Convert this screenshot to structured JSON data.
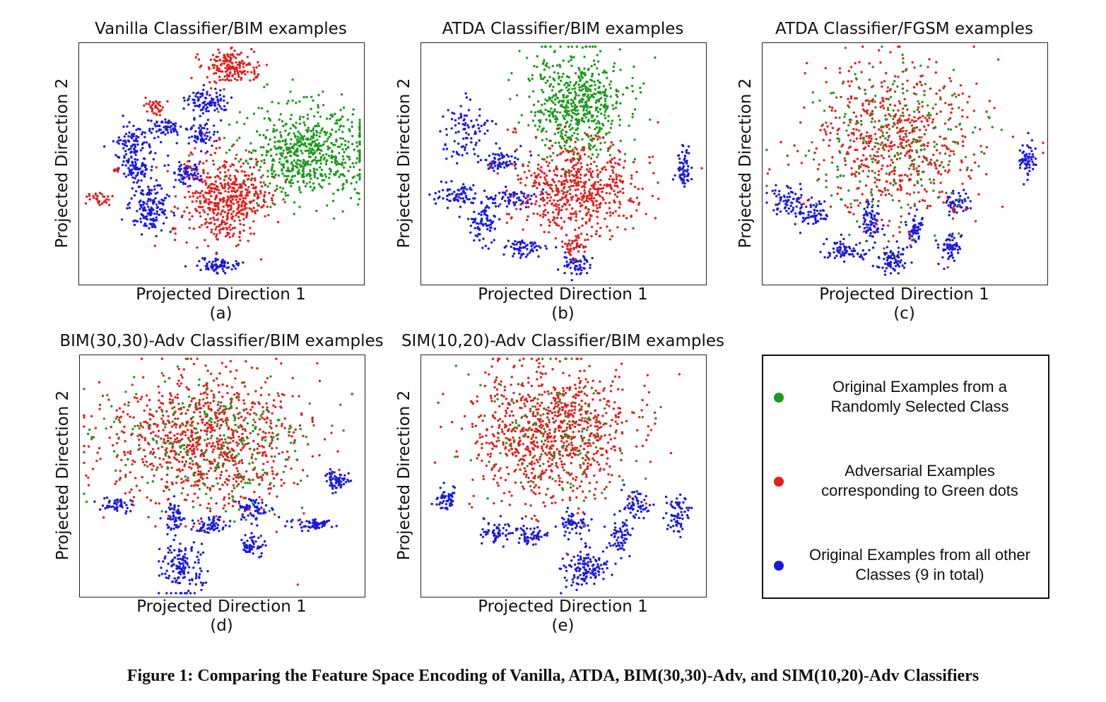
{
  "colors": {
    "green": "#1e9a1e",
    "red": "#e0201e",
    "blue": "#1a1adc"
  },
  "chart_data": [
    {
      "type": "scatter",
      "title": "Vanilla Classifier/BIM examples",
      "xlabel": "Projected Direction 1",
      "ylabel": "Projected Direction 2",
      "sublabel": "(a)",
      "grid": false,
      "clusters": [
        {
          "cls": "red",
          "x": 0.53,
          "y": 0.1,
          "sx": 0.045,
          "sy": 0.035,
          "n": 170
        },
        {
          "cls": "red",
          "x": 0.26,
          "y": 0.26,
          "sx": 0.018,
          "sy": 0.018,
          "n": 35
        },
        {
          "cls": "red",
          "x": 0.07,
          "y": 0.64,
          "sx": 0.018,
          "sy": 0.015,
          "n": 30
        },
        {
          "cls": "red",
          "x": 0.13,
          "y": 0.53,
          "sx": 0.006,
          "sy": 0.006,
          "n": 8
        },
        {
          "cls": "red",
          "x": 0.52,
          "y": 0.65,
          "sx": 0.075,
          "sy": 0.09,
          "n": 480
        },
        {
          "cls": "red",
          "x": 0.33,
          "y": 0.77,
          "sx": 0.004,
          "sy": 0.004,
          "n": 4
        },
        {
          "cls": "red",
          "x": 0.49,
          "y": 0.4,
          "sx": 0.004,
          "sy": 0.004,
          "n": 3
        },
        {
          "cls": "green",
          "x": 0.8,
          "y": 0.45,
          "sx": 0.11,
          "sy": 0.095,
          "n": 650
        },
        {
          "cls": "blue",
          "x": 0.45,
          "y": 0.24,
          "sx": 0.04,
          "sy": 0.025,
          "n": 90
        },
        {
          "cls": "blue",
          "x": 0.3,
          "y": 0.35,
          "sx": 0.03,
          "sy": 0.02,
          "n": 60
        },
        {
          "cls": "blue",
          "x": 0.43,
          "y": 0.38,
          "sx": 0.025,
          "sy": 0.03,
          "n": 70
        },
        {
          "cls": "blue",
          "x": 0.19,
          "y": 0.42,
          "sx": 0.035,
          "sy": 0.035,
          "n": 90
        },
        {
          "cls": "blue",
          "x": 0.2,
          "y": 0.52,
          "sx": 0.03,
          "sy": 0.025,
          "n": 70
        },
        {
          "cls": "blue",
          "x": 0.38,
          "y": 0.53,
          "sx": 0.03,
          "sy": 0.025,
          "n": 70
        },
        {
          "cls": "blue",
          "x": 0.25,
          "y": 0.68,
          "sx": 0.035,
          "sy": 0.05,
          "n": 160
        },
        {
          "cls": "blue",
          "x": 0.49,
          "y": 0.92,
          "sx": 0.04,
          "sy": 0.018,
          "n": 80
        }
      ]
    },
    {
      "type": "scatter",
      "title": "ATDA Classifier/BIM examples",
      "xlabel": "Projected Direction 1",
      "ylabel": "Projected Direction 2",
      "sublabel": "(b)",
      "grid": false,
      "clusters": [
        {
          "cls": "green",
          "x": 0.55,
          "y": 0.25,
          "sx": 0.085,
          "sy": 0.11,
          "n": 600
        },
        {
          "cls": "red",
          "x": 0.55,
          "y": 0.6,
          "sx": 0.11,
          "sy": 0.09,
          "n": 560
        },
        {
          "cls": "red",
          "x": 0.54,
          "y": 0.84,
          "sx": 0.02,
          "sy": 0.03,
          "n": 45
        },
        {
          "cls": "red",
          "x": 0.33,
          "y": 0.36,
          "sx": 0.005,
          "sy": 0.005,
          "n": 4
        },
        {
          "cls": "blue",
          "x": 0.15,
          "y": 0.36,
          "sx": 0.04,
          "sy": 0.06,
          "n": 90
        },
        {
          "cls": "blue",
          "x": 0.27,
          "y": 0.49,
          "sx": 0.035,
          "sy": 0.025,
          "n": 70
        },
        {
          "cls": "blue",
          "x": 0.12,
          "y": 0.63,
          "sx": 0.04,
          "sy": 0.025,
          "n": 70
        },
        {
          "cls": "blue",
          "x": 0.32,
          "y": 0.64,
          "sx": 0.045,
          "sy": 0.02,
          "n": 70
        },
        {
          "cls": "blue",
          "x": 0.22,
          "y": 0.75,
          "sx": 0.025,
          "sy": 0.045,
          "n": 80
        },
        {
          "cls": "blue",
          "x": 0.37,
          "y": 0.85,
          "sx": 0.04,
          "sy": 0.018,
          "n": 60
        },
        {
          "cls": "blue",
          "x": 0.54,
          "y": 0.92,
          "sx": 0.025,
          "sy": 0.025,
          "n": 60
        },
        {
          "cls": "blue",
          "x": 0.92,
          "y": 0.52,
          "sx": 0.012,
          "sy": 0.05,
          "n": 60
        }
      ]
    },
    {
      "type": "scatter",
      "title": "ATDA Classifier/FGSM examples",
      "xlabel": "Projected Direction 1",
      "ylabel": "Projected Direction 2",
      "sublabel": "(c)",
      "grid": false,
      "clusters": [
        {
          "cls": "red",
          "x": 0.47,
          "y": 0.4,
          "sx": 0.15,
          "sy": 0.16,
          "n": 600
        },
        {
          "cls": "green",
          "x": 0.47,
          "y": 0.4,
          "sx": 0.15,
          "sy": 0.16,
          "n": 220
        },
        {
          "cls": "blue",
          "x": 0.93,
          "y": 0.49,
          "sx": 0.015,
          "sy": 0.04,
          "n": 60
        },
        {
          "cls": "blue",
          "x": 0.09,
          "y": 0.65,
          "sx": 0.035,
          "sy": 0.035,
          "n": 70
        },
        {
          "cls": "blue",
          "x": 0.17,
          "y": 0.71,
          "sx": 0.03,
          "sy": 0.025,
          "n": 60
        },
        {
          "cls": "blue",
          "x": 0.38,
          "y": 0.74,
          "sx": 0.02,
          "sy": 0.04,
          "n": 70
        },
        {
          "cls": "blue",
          "x": 0.53,
          "y": 0.76,
          "sx": 0.015,
          "sy": 0.03,
          "n": 55
        },
        {
          "cls": "blue",
          "x": 0.68,
          "y": 0.66,
          "sx": 0.025,
          "sy": 0.02,
          "n": 50
        },
        {
          "cls": "blue",
          "x": 0.29,
          "y": 0.86,
          "sx": 0.04,
          "sy": 0.02,
          "n": 70
        },
        {
          "cls": "blue",
          "x": 0.46,
          "y": 0.9,
          "sx": 0.03,
          "sy": 0.03,
          "n": 75
        },
        {
          "cls": "blue",
          "x": 0.66,
          "y": 0.85,
          "sx": 0.02,
          "sy": 0.03,
          "n": 60
        }
      ]
    },
    {
      "type": "scatter",
      "title": "BIM(30,30)-Adv Classifier/BIM examples",
      "xlabel": "Projected Direction 1",
      "ylabel": "Projected Direction 2",
      "sublabel": "(d)",
      "grid": false,
      "clusters": [
        {
          "cls": "red",
          "x": 0.44,
          "y": 0.35,
          "sx": 0.17,
          "sy": 0.14,
          "n": 900
        },
        {
          "cls": "green",
          "x": 0.44,
          "y": 0.35,
          "sx": 0.17,
          "sy": 0.14,
          "n": 260
        },
        {
          "cls": "blue",
          "x": 0.9,
          "y": 0.52,
          "sx": 0.025,
          "sy": 0.02,
          "n": 60
        },
        {
          "cls": "blue",
          "x": 0.13,
          "y": 0.62,
          "sx": 0.025,
          "sy": 0.015,
          "n": 45
        },
        {
          "cls": "blue",
          "x": 0.33,
          "y": 0.67,
          "sx": 0.02,
          "sy": 0.03,
          "n": 55
        },
        {
          "cls": "blue",
          "x": 0.46,
          "y": 0.71,
          "sx": 0.025,
          "sy": 0.02,
          "n": 55
        },
        {
          "cls": "blue",
          "x": 0.6,
          "y": 0.64,
          "sx": 0.03,
          "sy": 0.025,
          "n": 60
        },
        {
          "cls": "blue",
          "x": 0.81,
          "y": 0.7,
          "sx": 0.045,
          "sy": 0.012,
          "n": 60
        },
        {
          "cls": "blue",
          "x": 0.61,
          "y": 0.78,
          "sx": 0.02,
          "sy": 0.03,
          "n": 55
        },
        {
          "cls": "blue",
          "x": 0.36,
          "y": 0.88,
          "sx": 0.035,
          "sy": 0.055,
          "n": 140
        }
      ]
    },
    {
      "type": "scatter",
      "title": "SIM(10,20)-Adv Classifier/BIM examples",
      "xlabel": "Projected Direction 1",
      "ylabel": "Projected Direction 2",
      "sublabel": "(e)",
      "grid": false,
      "clusters": [
        {
          "cls": "red",
          "x": 0.46,
          "y": 0.32,
          "sx": 0.14,
          "sy": 0.14,
          "n": 880
        },
        {
          "cls": "green",
          "x": 0.46,
          "y": 0.32,
          "sx": 0.14,
          "sy": 0.14,
          "n": 120
        },
        {
          "cls": "blue",
          "x": 0.09,
          "y": 0.6,
          "sx": 0.02,
          "sy": 0.03,
          "n": 50
        },
        {
          "cls": "blue",
          "x": 0.27,
          "y": 0.73,
          "sx": 0.03,
          "sy": 0.025,
          "n": 60
        },
        {
          "cls": "blue",
          "x": 0.39,
          "y": 0.75,
          "sx": 0.03,
          "sy": 0.02,
          "n": 55
        },
        {
          "cls": "blue",
          "x": 0.53,
          "y": 0.7,
          "sx": 0.025,
          "sy": 0.025,
          "n": 55
        },
        {
          "cls": "blue",
          "x": 0.75,
          "y": 0.62,
          "sx": 0.025,
          "sy": 0.035,
          "n": 60
        },
        {
          "cls": "blue",
          "x": 0.7,
          "y": 0.75,
          "sx": 0.02,
          "sy": 0.03,
          "n": 55
        },
        {
          "cls": "blue",
          "x": 0.9,
          "y": 0.66,
          "sx": 0.02,
          "sy": 0.045,
          "n": 65
        },
        {
          "cls": "blue",
          "x": 0.57,
          "y": 0.88,
          "sx": 0.04,
          "sy": 0.04,
          "n": 130
        }
      ]
    }
  ],
  "legend": [
    {
      "cls": "green",
      "text": "Original Examples from a Randomly Selected Class"
    },
    {
      "cls": "red",
      "text": "Adversarial Examples corresponding to Green dots"
    },
    {
      "cls": "blue",
      "text": "Original Examples from all other Classes (9 in total)"
    }
  ],
  "caption": "Figure 1: Comparing the Feature Space Encoding of Vanilla, ATDA, BIM(30,30)-Adv, and SIM(10,20)-Adv Classifiers"
}
